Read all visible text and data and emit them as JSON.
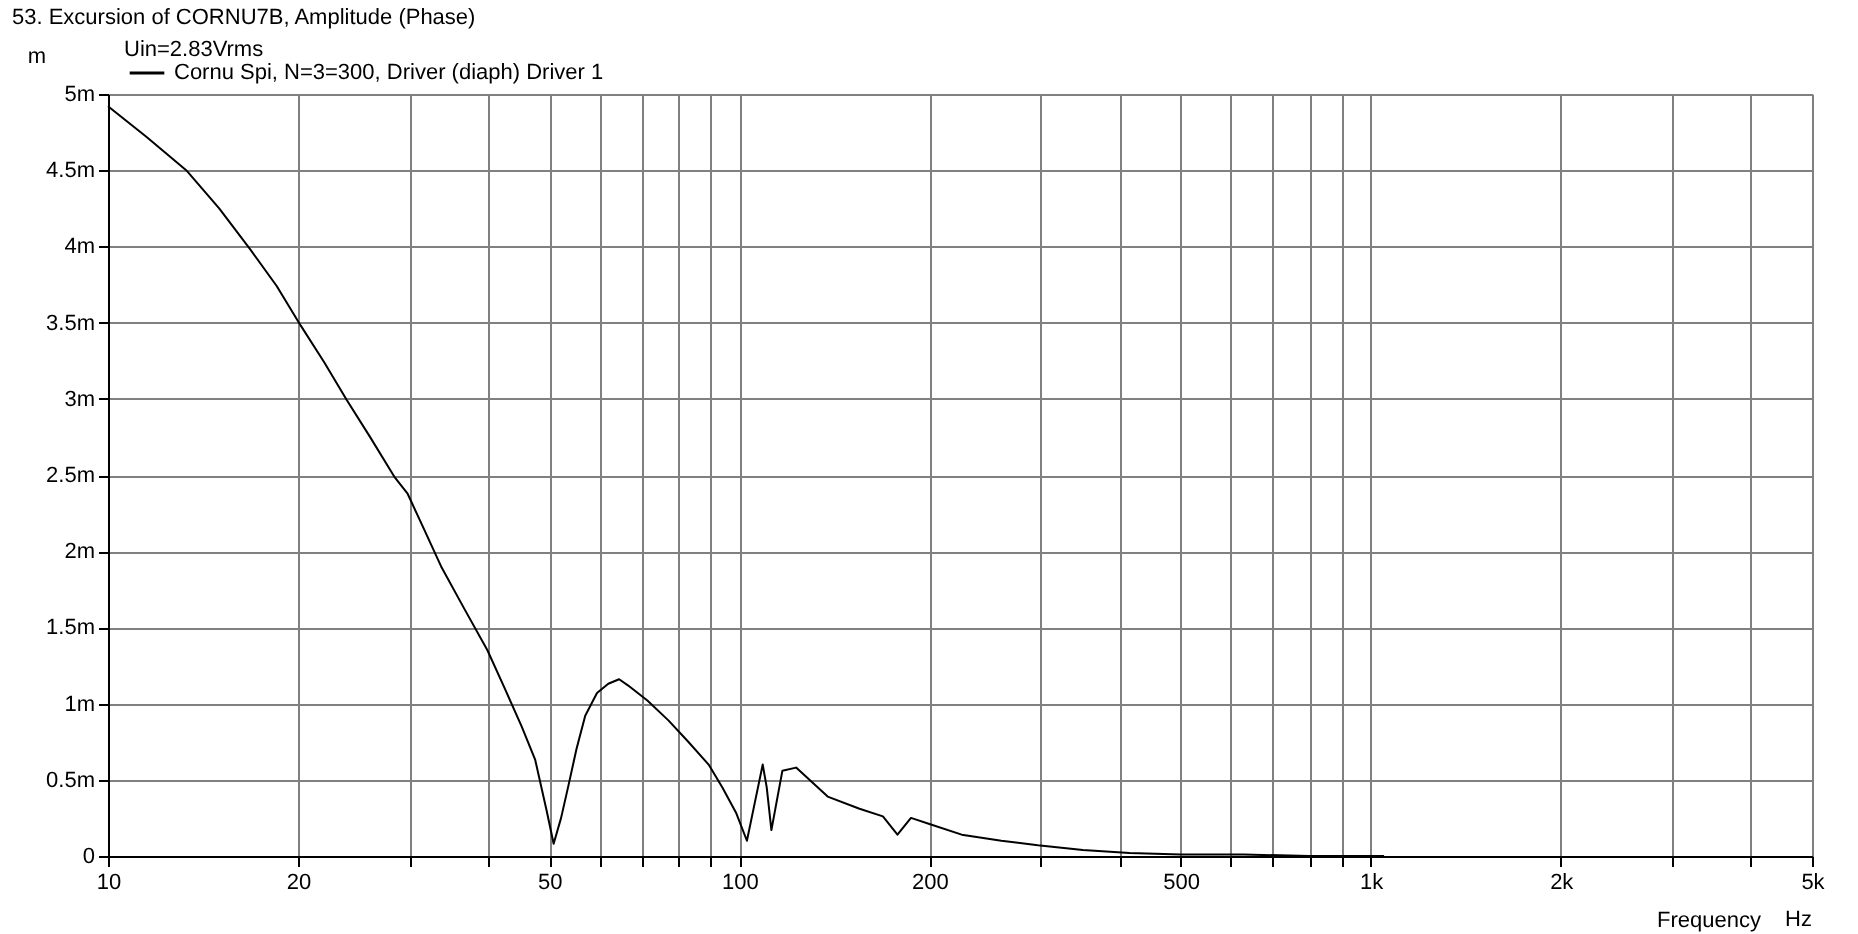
{
  "chart_data": {
    "type": "line",
    "title": "53. Excursion of CORNU7B, Amplitude (Phase)",
    "xlabel": "Frequency",
    "ylabel": "m",
    "annotations": [
      "Uin=2.83Vrms",
      "Hz"
    ],
    "series": [
      {
        "name": "Cornu Spi, N=3=300, Driver (diaph) Driver 1",
        "color": "#000000",
        "x": [
          10,
          11.5,
          13.3,
          15,
          16.8,
          18.5,
          20.2,
          22,
          23.9,
          26,
          28.4,
          29.8,
          31.7,
          33.7,
          36.7,
          39.9,
          42.5,
          45.2,
          47.5,
          49.5,
          50.8,
          52.2,
          53.6,
          55.2,
          57,
          59.5,
          62,
          64.5,
          66.6,
          71.5,
          77.2,
          83,
          89.4,
          94,
          98.9,
          102.8,
          105.8,
          108.9,
          110.5,
          112.4,
          114.5,
          117,
          123,
          138,
          155,
          168.8,
          178,
          187,
          200,
          225,
          260,
          297,
          350,
          415,
          500,
          630,
          800,
          1050
        ],
        "values": [
          4.92,
          4.72,
          4.5,
          4.25,
          3.98,
          3.74,
          3.48,
          3.24,
          2.99,
          2.75,
          2.49,
          2.38,
          2.14,
          1.9,
          1.62,
          1.35,
          1.1,
          0.85,
          0.63,
          0.3,
          0.08,
          0.25,
          0.46,
          0.7,
          0.92,
          1.07,
          1.13,
          1.16,
          1.12,
          1.02,
          0.89,
          0.75,
          0.6,
          0.45,
          0.28,
          0.1,
          0.35,
          0.6,
          0.45,
          0.17,
          0.35,
          0.56,
          0.58,
          0.39,
          0.31,
          0.26,
          0.14,
          0.25,
          0.21,
          0.14,
          0.1,
          0.07,
          0.04,
          0.02,
          0.01,
          0.01,
          0,
          0
        ]
      }
    ],
    "xlim": [
      10,
      5000
    ],
    "xticks": [
      10,
      20,
      {
        "value": 30,
        "label": null
      },
      {
        "value": 40,
        "label": null
      },
      50,
      {
        "value": 60,
        "label": null
      },
      {
        "value": 70,
        "label": null
      },
      {
        "value": 80,
        "label": null
      },
      {
        "value": 90,
        "label": null
      },
      100,
      200,
      {
        "value": 300,
        "label": null
      },
      {
        "value": 400,
        "label": null
      },
      500,
      {
        "value": 600,
        "label": null
      },
      {
        "value": 700,
        "label": null
      },
      {
        "value": 800,
        "label": null
      },
      {
        "value": 900,
        "label": null
      },
      {
        "value": 1000,
        "label": "1k"
      },
      {
        "value": 2000,
        "label": "2k"
      },
      {
        "value": 3000,
        "label": null
      },
      {
        "value": 4000,
        "label": null
      },
      {
        "value": 5000,
        "label": "5k"
      }
    ],
    "ylim": [
      0,
      5
    ],
    "yticks": [
      0,
      {
        "value": 0.5,
        "label": "0.5m"
      },
      {
        "value": 1,
        "label": "1m"
      },
      {
        "value": 1.5,
        "label": "1.5m"
      },
      {
        "value": 2,
        "label": "2m"
      },
      {
        "value": 2.5,
        "label": "2.5m"
      },
      {
        "value": 3,
        "label": "3m"
      },
      {
        "value": 3.5,
        "label": "3.5m"
      },
      {
        "value": 4,
        "label": "4m"
      },
      {
        "value": 4.5,
        "label": "4.5m"
      },
      {
        "value": 5,
        "label": "5m"
      }
    ],
    "log": "x",
    "grid": true,
    "legend": "top left",
    "marker": "none",
    "line_style": "solid"
  }
}
